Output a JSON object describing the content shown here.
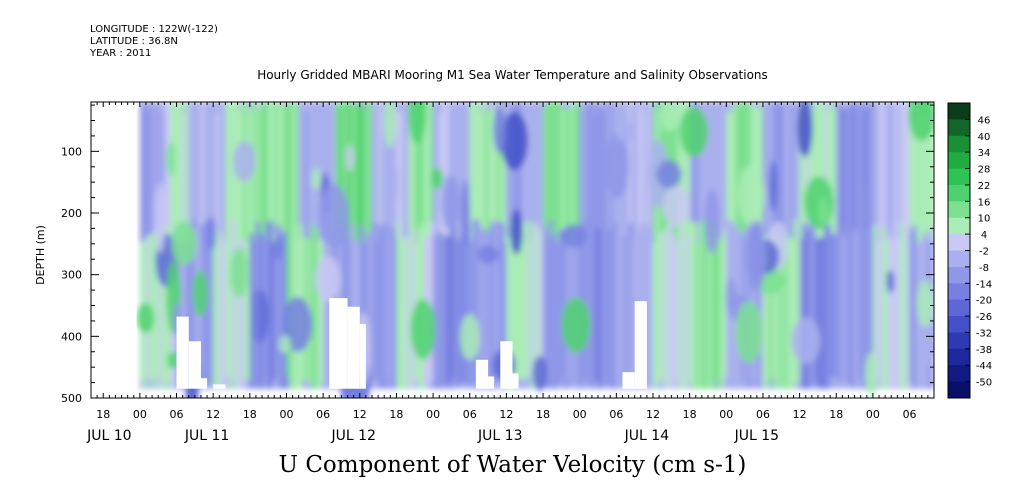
{
  "meta": {
    "longitude": "LONGITUDE : 122W(-122)",
    "latitude": "LATITUDE : 36.8N",
    "year": "YEAR : 2011"
  },
  "plot_title": "Hourly Gridded MBARI Mooring M1 Sea Water Temperature and Salinity Observations",
  "variable_title": "U Component of Water Velocity (cm s-1)",
  "chart_data": {
    "type": "heatmap",
    "title": "Hourly Gridded MBARI Mooring M1 Sea Water Temperature and Salinity Observations",
    "variable": "U Component of Water Velocity (cm s-1)",
    "ylabel": "DEPTH (m)",
    "ylim": [
      500,
      20
    ],
    "y_ticks": [
      100,
      200,
      300,
      400,
      500
    ],
    "x_range_hours": [
      -8,
      130
    ],
    "data_range_hours": [
      0,
      130
    ],
    "depth_range": [
      20,
      485
    ],
    "x_hour_labels": [
      {
        "h": -6,
        "label": "18"
      },
      {
        "h": 0,
        "label": "00"
      },
      {
        "h": 6,
        "label": "06"
      },
      {
        "h": 12,
        "label": "12"
      },
      {
        "h": 18,
        "label": "18"
      },
      {
        "h": 24,
        "label": "00"
      },
      {
        "h": 30,
        "label": "06"
      },
      {
        "h": 36,
        "label": "12"
      },
      {
        "h": 42,
        "label": "18"
      },
      {
        "h": 48,
        "label": "00"
      },
      {
        "h": 54,
        "label": "06"
      },
      {
        "h": 60,
        "label": "12"
      },
      {
        "h": 66,
        "label": "18"
      },
      {
        "h": 72,
        "label": "00"
      },
      {
        "h": 78,
        "label": "06"
      },
      {
        "h": 84,
        "label": "12"
      },
      {
        "h": 90,
        "label": "18"
      },
      {
        "h": 96,
        "label": "00"
      },
      {
        "h": 102,
        "label": "06"
      },
      {
        "h": 108,
        "label": "12"
      },
      {
        "h": 114,
        "label": "18"
      },
      {
        "h": 120,
        "label": "00"
      },
      {
        "h": 126,
        "label": "06"
      }
    ],
    "x_day_labels": [
      {
        "h": -5,
        "label": "JUL 10"
      },
      {
        "h": 11,
        "label": "JUL 11"
      },
      {
        "h": 35,
        "label": "JUL 12"
      },
      {
        "h": 59,
        "label": "JUL 13"
      },
      {
        "h": 83,
        "label": "JUL 14"
      },
      {
        "h": 101,
        "label": "JUL 15"
      }
    ],
    "colorbar": {
      "levels": [
        "46",
        "40",
        "34",
        "28",
        "22",
        "16",
        "10",
        "4",
        "-2",
        "-8",
        "-14",
        "-20",
        "-26",
        "-32",
        "-38",
        "-44",
        "-50"
      ],
      "colors": [
        "#0b3d18",
        "#12662a",
        "#199036",
        "#21ab41",
        "#2fc255",
        "#4fd26e",
        "#7be090",
        "#aaecb6",
        "#c9c9f5",
        "#aab0ee",
        "#8f98e8",
        "#7680e0",
        "#5d68d6",
        "#4350c8",
        "#2d3ab4",
        "#1c289c",
        "#101a80",
        "#0a106a"
      ]
    },
    "hourly_bands": {
      "description": "approximate dominant U velocity (cm s-1) per time slice: [start_hour, end_hour, value]",
      "upper": [
        [
          0,
          4,
          -8
        ],
        [
          4,
          8,
          6
        ],
        [
          8,
          14,
          -4
        ],
        [
          14,
          20,
          8
        ],
        [
          20,
          26,
          12
        ],
        [
          26,
          32,
          -6
        ],
        [
          32,
          38,
          14
        ],
        [
          38,
          44,
          -4
        ],
        [
          44,
          48,
          10
        ],
        [
          48,
          54,
          -4
        ],
        [
          54,
          60,
          8
        ],
        [
          60,
          66,
          -6
        ],
        [
          66,
          72,
          12
        ],
        [
          72,
          78,
          -8
        ],
        [
          78,
          84,
          -4
        ],
        [
          84,
          90,
          10
        ],
        [
          90,
          96,
          -6
        ],
        [
          96,
          102,
          8
        ],
        [
          102,
          108,
          -8
        ],
        [
          108,
          114,
          6
        ],
        [
          114,
          120,
          -12
        ],
        [
          120,
          126,
          -2
        ],
        [
          126,
          130,
          8
        ]
      ],
      "lower": [
        [
          0,
          6,
          6
        ],
        [
          6,
          12,
          -10
        ],
        [
          12,
          18,
          4
        ],
        [
          18,
          24,
          -12
        ],
        [
          24,
          30,
          8
        ],
        [
          30,
          36,
          -6
        ],
        [
          36,
          42,
          -10
        ],
        [
          42,
          48,
          6
        ],
        [
          48,
          54,
          -14
        ],
        [
          54,
          60,
          -8
        ],
        [
          60,
          66,
          4
        ],
        [
          66,
          72,
          -10
        ],
        [
          72,
          78,
          -12
        ],
        [
          78,
          84,
          -6
        ],
        [
          84,
          90,
          4
        ],
        [
          90,
          96,
          10
        ],
        [
          96,
          102,
          -6
        ],
        [
          102,
          108,
          8
        ],
        [
          108,
          114,
          -14
        ],
        [
          114,
          120,
          -10
        ],
        [
          120,
          126,
          2
        ],
        [
          126,
          130,
          -6
        ]
      ]
    },
    "missing_blocks": [
      [
        6,
        8,
        368,
        485
      ],
      [
        8,
        10,
        408,
        485
      ],
      [
        10,
        11,
        468,
        485
      ],
      [
        12,
        14,
        478,
        485
      ],
      [
        31,
        34,
        338,
        485
      ],
      [
        34,
        36,
        352,
        485
      ],
      [
        36,
        37,
        380,
        485
      ],
      [
        55,
        57,
        438,
        485
      ],
      [
        57,
        58,
        465,
        485
      ],
      [
        59,
        61,
        408,
        485
      ],
      [
        61,
        62,
        460,
        485
      ],
      [
        79,
        81,
        458,
        485
      ],
      [
        81,
        83,
        343,
        485
      ]
    ]
  }
}
